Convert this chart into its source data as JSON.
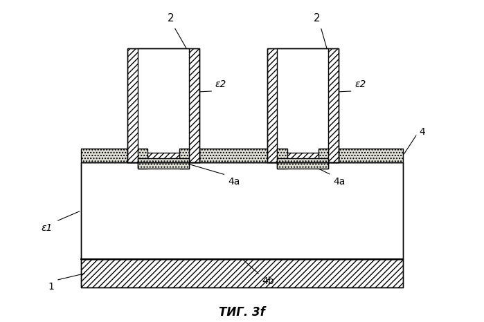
{
  "bg_color": "#ffffff",
  "line_color": "#000000",
  "stipple_color": "#e0e0d8",
  "fig_label": "ΤИГ. 3f",
  "labels": {
    "2_left": "2",
    "2_right": "2",
    "eps1": "ε1",
    "eps2_left": "ε2",
    "eps2_right": "ε2",
    "4": "4",
    "4a_left": "4a",
    "4a_right": "4a",
    "4b": "4b",
    "1": "1"
  },
  "lw": 1.0
}
